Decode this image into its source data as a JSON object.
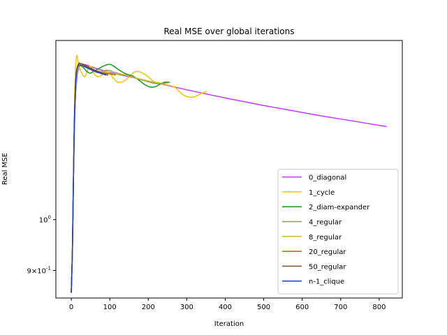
{
  "chart_data": {
    "type": "line",
    "title": "Real MSE over global iterations",
    "xlabel": "Iteration",
    "ylabel": "Real MSE",
    "yscale": "log",
    "xlim": [
      -40,
      860
    ],
    "ylim": [
      0.85,
      1.45
    ],
    "x_ticks": [
      0,
      100,
      200,
      300,
      400,
      500,
      600,
      700,
      800
    ],
    "y_ticks": [
      {
        "value": 1.0,
        "label": "10^0"
      },
      {
        "value": 0.9,
        "label": "9×10^-1"
      }
    ],
    "grid": false,
    "legend_position": "lower right",
    "series": [
      {
        "name": "0_diagonal",
        "color": "#bf3bff",
        "points": [
          [
            0,
            0.86
          ],
          [
            3,
            0.94
          ],
          [
            5,
            1.05
          ],
          [
            8,
            1.2
          ],
          [
            12,
            1.31
          ],
          [
            18,
            1.365
          ],
          [
            25,
            1.38
          ],
          [
            40,
            1.378
          ],
          [
            60,
            1.37
          ],
          [
            100,
            1.357
          ],
          [
            150,
            1.345
          ],
          [
            200,
            1.333
          ],
          [
            250,
            1.321
          ],
          [
            300,
            1.309
          ],
          [
            350,
            1.298
          ],
          [
            400,
            1.287
          ],
          [
            450,
            1.277
          ],
          [
            500,
            1.267
          ],
          [
            550,
            1.258
          ],
          [
            600,
            1.249
          ],
          [
            650,
            1.24
          ],
          [
            700,
            1.232
          ],
          [
            750,
            1.224
          ],
          [
            800,
            1.216
          ],
          [
            818,
            1.213
          ]
        ]
      },
      {
        "name": "1_cycle",
        "color": "#f5c400",
        "points": [
          [
            0,
            0.86
          ],
          [
            3,
            0.94
          ],
          [
            5,
            1.05
          ],
          [
            8,
            1.25
          ],
          [
            10,
            1.34
          ],
          [
            12,
            1.385
          ],
          [
            14,
            1.405
          ],
          [
            16,
            1.4
          ],
          [
            20,
            1.375
          ],
          [
            25,
            1.36
          ],
          [
            30,
            1.35
          ],
          [
            35,
            1.345
          ],
          [
            40,
            1.355
          ],
          [
            45,
            1.37
          ],
          [
            50,
            1.375
          ],
          [
            55,
            1.365
          ],
          [
            60,
            1.352
          ],
          [
            70,
            1.345
          ],
          [
            80,
            1.35
          ],
          [
            90,
            1.36
          ],
          [
            100,
            1.355
          ],
          [
            110,
            1.34
          ],
          [
            120,
            1.33
          ],
          [
            130,
            1.33
          ],
          [
            140,
            1.335
          ],
          [
            150,
            1.345
          ],
          [
            160,
            1.355
          ],
          [
            170,
            1.36
          ],
          [
            180,
            1.358
          ],
          [
            190,
            1.352
          ],
          [
            200,
            1.345
          ],
          [
            210,
            1.335
          ],
          [
            220,
            1.328
          ],
          [
            230,
            1.325
          ],
          [
            240,
            1.325
          ],
          [
            250,
            1.322
          ],
          [
            260,
            1.32
          ],
          [
            270,
            1.315
          ],
          [
            280,
            1.305
          ],
          [
            290,
            1.296
          ],
          [
            300,
            1.291
          ],
          [
            310,
            1.289
          ],
          [
            320,
            1.29
          ],
          [
            330,
            1.295
          ],
          [
            340,
            1.3
          ],
          [
            350,
            1.305
          ]
        ]
      },
      {
        "name": "2_diam-expander",
        "color": "#1a9a1a",
        "points": [
          [
            0,
            0.86
          ],
          [
            3,
            0.94
          ],
          [
            5,
            1.05
          ],
          [
            8,
            1.22
          ],
          [
            12,
            1.33
          ],
          [
            16,
            1.365
          ],
          [
            22,
            1.375
          ],
          [
            30,
            1.372
          ],
          [
            40,
            1.36
          ],
          [
            50,
            1.355
          ],
          [
            60,
            1.362
          ],
          [
            70,
            1.367
          ],
          [
            80,
            1.373
          ],
          [
            90,
            1.378
          ],
          [
            100,
            1.38
          ],
          [
            110,
            1.375
          ],
          [
            120,
            1.367
          ],
          [
            130,
            1.36
          ],
          [
            140,
            1.354
          ],
          [
            150,
            1.35
          ],
          [
            160,
            1.347
          ],
          [
            170,
            1.34
          ],
          [
            180,
            1.332
          ],
          [
            190,
            1.324
          ],
          [
            200,
            1.318
          ],
          [
            210,
            1.316
          ],
          [
            220,
            1.318
          ],
          [
            230,
            1.324
          ],
          [
            240,
            1.329
          ],
          [
            250,
            1.33
          ],
          [
            255,
            1.329
          ]
        ]
      },
      {
        "name": "4_regular",
        "color": "#8f9c5a",
        "points": [
          [
            0,
            0.86
          ],
          [
            3,
            0.94
          ],
          [
            5,
            1.05
          ],
          [
            8,
            1.21
          ],
          [
            12,
            1.32
          ],
          [
            18,
            1.37
          ],
          [
            28,
            1.375
          ],
          [
            40,
            1.37
          ],
          [
            50,
            1.365
          ],
          [
            60,
            1.36
          ],
          [
            70,
            1.356
          ],
          [
            80,
            1.36
          ],
          [
            90,
            1.363
          ],
          [
            100,
            1.362
          ],
          [
            110,
            1.358
          ],
          [
            120,
            1.355
          ],
          [
            130,
            1.352
          ],
          [
            140,
            1.35
          ],
          [
            150,
            1.347
          ],
          [
            160,
            1.343
          ],
          [
            170,
            1.34
          ],
          [
            180,
            1.337
          ],
          [
            190,
            1.334
          ],
          [
            200,
            1.331
          ],
          [
            210,
            1.328
          ],
          [
            220,
            1.326
          ],
          [
            230,
            1.326
          ],
          [
            240,
            1.327
          ],
          [
            250,
            1.328
          ]
        ]
      },
      {
        "name": "8_regular",
        "color": "#c8b82a",
        "points": [
          [
            0,
            0.86
          ],
          [
            3,
            0.94
          ],
          [
            5,
            1.05
          ],
          [
            8,
            1.21
          ],
          [
            12,
            1.33
          ],
          [
            18,
            1.375
          ],
          [
            25,
            1.38
          ],
          [
            35,
            1.376
          ],
          [
            45,
            1.37
          ],
          [
            55,
            1.365
          ],
          [
            65,
            1.362
          ],
          [
            75,
            1.36
          ],
          [
            85,
            1.358
          ],
          [
            95,
            1.355
          ],
          [
            110,
            1.353
          ],
          [
            125,
            1.352
          ],
          [
            140,
            1.349
          ],
          [
            155,
            1.345
          ],
          [
            170,
            1.341
          ],
          [
            185,
            1.337
          ],
          [
            200,
            1.333
          ],
          [
            215,
            1.33
          ],
          [
            230,
            1.328
          ]
        ]
      },
      {
        "name": "20_regular",
        "color": "#b86b00",
        "points": [
          [
            0,
            0.86
          ],
          [
            3,
            0.94
          ],
          [
            5,
            1.05
          ],
          [
            8,
            1.22
          ],
          [
            12,
            1.34
          ],
          [
            18,
            1.38
          ],
          [
            25,
            1.382
          ],
          [
            35,
            1.377
          ],
          [
            45,
            1.372
          ],
          [
            55,
            1.367
          ],
          [
            65,
            1.362
          ],
          [
            75,
            1.358
          ],
          [
            85,
            1.355
          ],
          [
            95,
            1.354
          ],
          [
            105,
            1.352
          ],
          [
            115,
            1.35
          ]
        ]
      },
      {
        "name": "50_regular",
        "color": "#7a5230",
        "points": [
          [
            0,
            0.86
          ],
          [
            3,
            0.94
          ],
          [
            5,
            1.05
          ],
          [
            8,
            1.22
          ],
          [
            12,
            1.34
          ],
          [
            18,
            1.378
          ],
          [
            25,
            1.382
          ],
          [
            35,
            1.378
          ],
          [
            45,
            1.372
          ],
          [
            55,
            1.366
          ],
          [
            65,
            1.361
          ],
          [
            75,
            1.357
          ],
          [
            85,
            1.353
          ],
          [
            95,
            1.35
          ]
        ]
      },
      {
        "name": "n-1_clique",
        "color": "#1a3fd6",
        "points": [
          [
            0,
            0.86
          ],
          [
            3,
            0.94
          ],
          [
            5,
            1.05
          ],
          [
            8,
            1.22
          ],
          [
            12,
            1.34
          ],
          [
            16,
            1.372
          ],
          [
            22,
            1.378
          ],
          [
            30,
            1.376
          ],
          [
            40,
            1.371
          ],
          [
            50,
            1.366
          ],
          [
            60,
            1.361
          ],
          [
            70,
            1.357
          ],
          [
            80,
            1.353
          ],
          [
            90,
            1.35
          ]
        ]
      }
    ]
  }
}
